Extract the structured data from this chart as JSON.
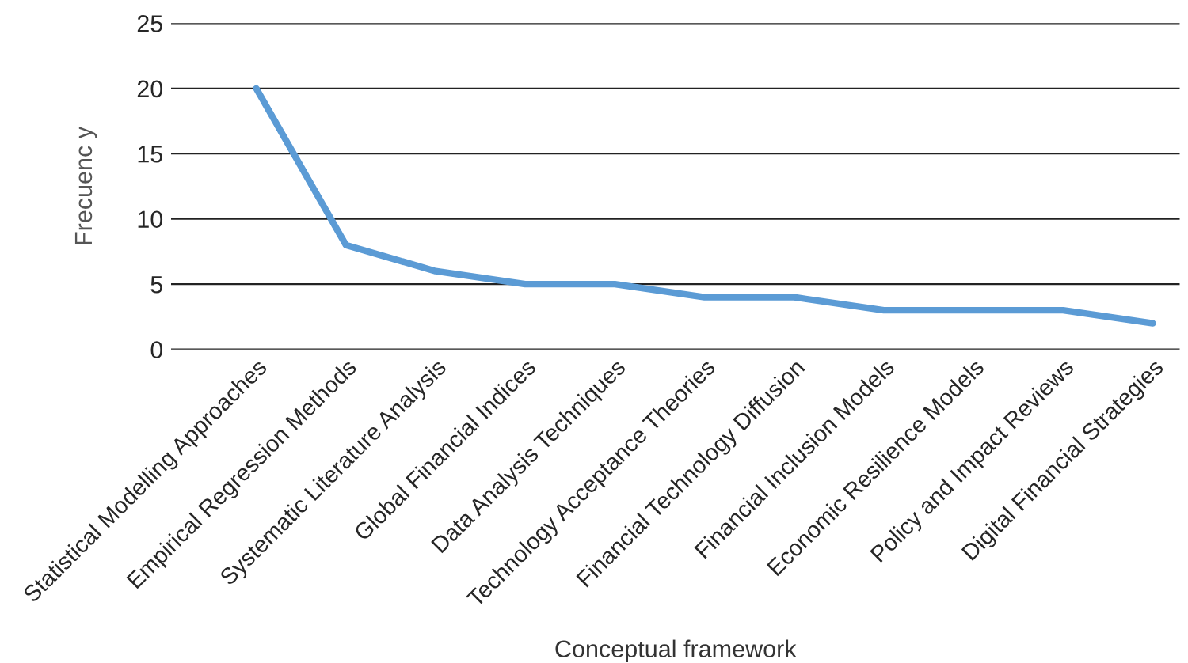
{
  "chart_data": {
    "type": "line",
    "xlabel": "Conceptual framework",
    "ylabel": "Frecuenc y",
    "categories": [
      "Statistical Modelling Approaches",
      "Empirical Regression Methods",
      "Systematic Literature Analysis",
      "Global Financial Indices",
      "Data Analysis Techniques",
      "Technology Acceptance Theories",
      "Financial Technology Diffusion",
      "Financial Inclusion Models",
      "Economic Resilience Models",
      "Policy and Impact Reviews",
      "Digital Financial Strategies"
    ],
    "series": [
      {
        "color": "#5b9bd5",
        "values": [
          20,
          8,
          6,
          5,
          5,
          4,
          4,
          3,
          3,
          3,
          2
        ]
      }
    ],
    "ylim": [
      0,
      25
    ],
    "yticks": [
      0,
      5,
      10,
      15,
      20,
      25
    ],
    "grid": "y",
    "legend": false,
    "marker": "none",
    "line_style": "solid"
  }
}
